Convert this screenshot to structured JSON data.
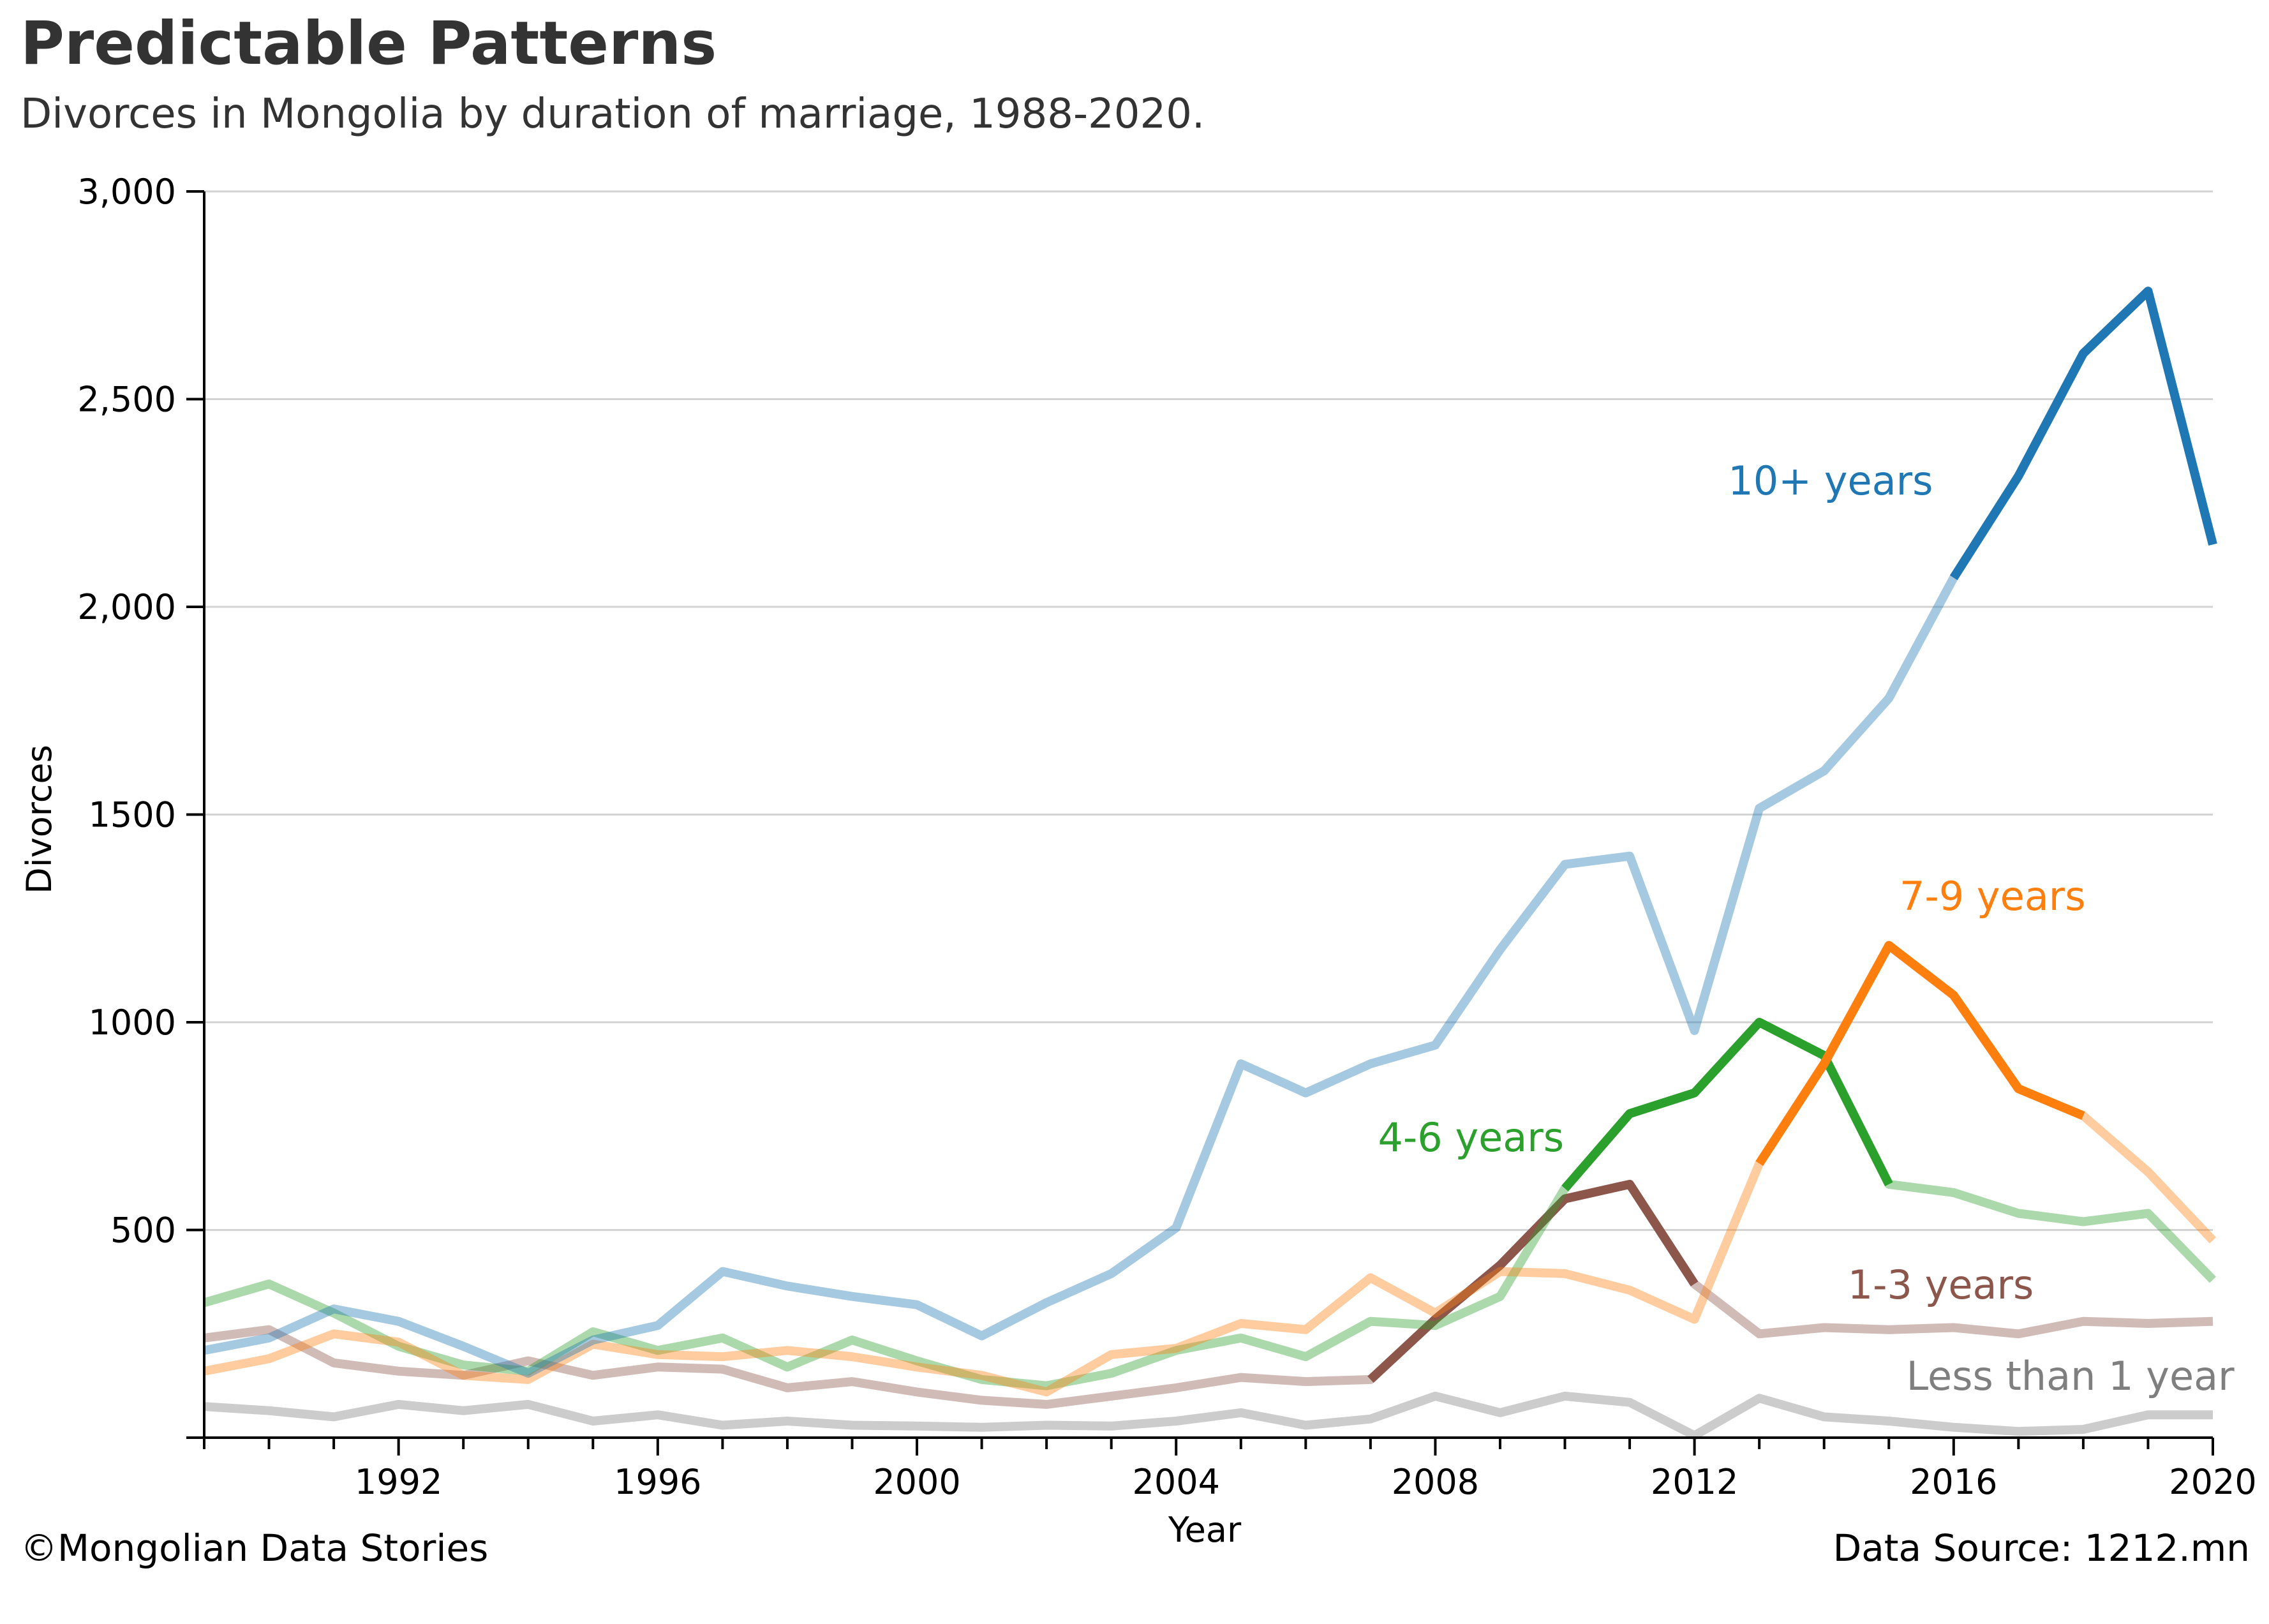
{
  "header": {
    "title": "Predictable Patterns",
    "subtitle": "Divorces in Mongolia by duration of marriage, 1988-2020."
  },
  "footer": {
    "credit": "©Mongolian Data Stories",
    "source": "Data Source: 1212.mn"
  },
  "chart_data": {
    "type": "line",
    "xlabel": "Year",
    "ylabel": "Divorces",
    "xlim": [
      1989,
      2020
    ],
    "ylim": [
      0,
      3000
    ],
    "x_ticks": [
      1992,
      1996,
      2000,
      2004,
      2008,
      2012,
      2016,
      2020
    ],
    "y_ticks": [
      {
        "value": 500,
        "label": "500"
      },
      {
        "value": 1000,
        "label": "1000"
      },
      {
        "value": 1500,
        "label": "1500"
      },
      {
        "value": 2000,
        "label": "2,000"
      },
      {
        "value": 2500,
        "label": "2,500"
      },
      {
        "value": 3000,
        "label": "3,000"
      }
    ],
    "grid": "horizontal",
    "x": [
      1989,
      1990,
      1991,
      1992,
      1993,
      1994,
      1995,
      1996,
      1997,
      1998,
      1999,
      2000,
      2001,
      2002,
      2003,
      2004,
      2005,
      2006,
      2007,
      2008,
      2009,
      2010,
      2011,
      2012,
      2013,
      2014,
      2015,
      2016,
      2017,
      2018,
      2019,
      2020
    ],
    "series": [
      {
        "name": "Less than 1 year",
        "color": "#7f7f7f",
        "highlight": null,
        "values": [
          75,
          65,
          50,
          80,
          65,
          80,
          40,
          55,
          30,
          40,
          30,
          28,
          25,
          30,
          28,
          40,
          60,
          30,
          45,
          100,
          60,
          100,
          85,
          5,
          95,
          50,
          40,
          25,
          15,
          20,
          55,
          55
        ]
      },
      {
        "name": "1-3 years",
        "color": "#8c564b",
        "highlight": [
          2007,
          2012
        ],
        "values": [
          240,
          260,
          180,
          160,
          150,
          185,
          150,
          170,
          165,
          120,
          135,
          110,
          90,
          80,
          100,
          120,
          145,
          135,
          140,
          285,
          415,
          575,
          610,
          370,
          250,
          265,
          260,
          265,
          250,
          280,
          275,
          280
        ]
      },
      {
        "name": "4-6 years",
        "color": "#2ca02c",
        "highlight": [
          2010,
          2015
        ],
        "values": [
          325,
          370,
          300,
          220,
          175,
          160,
          255,
          210,
          240,
          170,
          235,
          185,
          140,
          125,
          155,
          210,
          240,
          195,
          280,
          270,
          340,
          600,
          780,
          830,
          1000,
          920,
          610,
          590,
          540,
          520,
          540,
          380
        ]
      },
      {
        "name": "7-9 years",
        "color": "#ff7f0e",
        "highlight": [
          2013,
          2018
        ],
        "values": [
          160,
          190,
          250,
          230,
          150,
          140,
          225,
          200,
          195,
          210,
          195,
          170,
          150,
          110,
          200,
          215,
          275,
          260,
          385,
          300,
          400,
          395,
          355,
          285,
          660,
          900,
          1185,
          1065,
          840,
          775,
          640,
          475
        ]
      },
      {
        "name": "10+ years",
        "color": "#1f77b4",
        "highlight": [
          2016,
          2020
        ],
        "values": [
          210,
          240,
          310,
          280,
          220,
          155,
          235,
          270,
          400,
          365,
          340,
          320,
          245,
          325,
          395,
          505,
          900,
          830,
          900,
          945,
          1175,
          1380,
          1400,
          980,
          1515,
          1605,
          1780,
          2070,
          2315,
          2610,
          2760,
          2150
        ]
      }
    ],
    "annotations": [
      {
        "text": "10+ years",
        "color": "#1f77b4",
        "x": 2014.1,
        "y": 2270
      },
      {
        "text": "7-9 years",
        "color": "#ff7f0e",
        "x": 2016.6,
        "y": 1270
      },
      {
        "text": "4-6 years",
        "color": "#2ca02c",
        "x": 2008.55,
        "y": 690
      },
      {
        "text": "1-3 years",
        "color": "#8c564b",
        "x": 2015.8,
        "y": 335
      },
      {
        "text": "Less than 1 year",
        "color": "#7f7f7f",
        "x": 2017.8,
        "y": 115
      }
    ]
  }
}
